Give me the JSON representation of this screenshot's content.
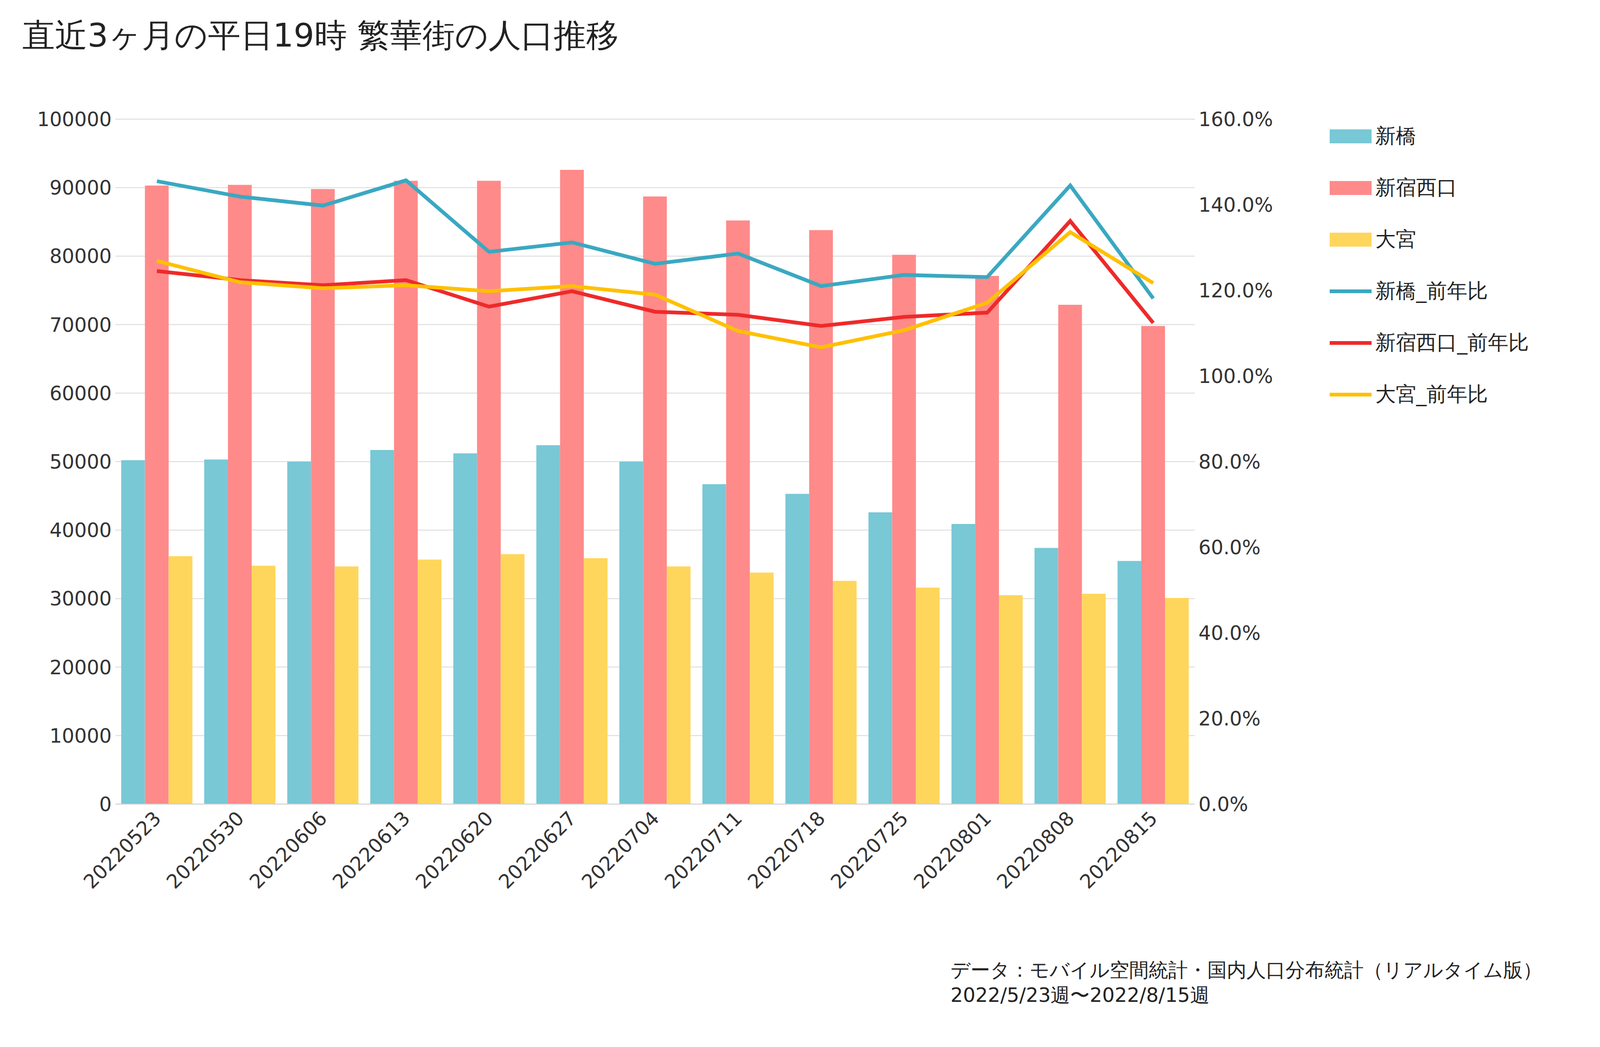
{
  "chart_data": {
    "type": "bar",
    "title": "直近3ヶ月の平日19時 繁華街の人口推移",
    "annotations": [
      "データ：モバイル空間統計・国内人口分布統計（リアルタイム版）",
      "2022/5/23週〜2022/8/15週"
    ],
    "categories": [
      "20220523",
      "20220530",
      "20220606",
      "20220613",
      "20220620",
      "20220627",
      "20220704",
      "20220711",
      "20220718",
      "20220725",
      "20220801",
      "20220808",
      "20220815"
    ],
    "series": [
      {
        "name": "新橋",
        "type": "bar",
        "color": "#78C8D6",
        "values": [
          50200,
          50300,
          50000,
          51700,
          51200,
          52400,
          50000,
          46700,
          45300,
          42600,
          40900,
          37400,
          35500
        ]
      },
      {
        "name": "新宿西口",
        "type": "bar",
        "color": "#FF8A8A",
        "values": [
          90300,
          90400,
          89800,
          91000,
          91000,
          92600,
          88700,
          85200,
          83800,
          80200,
          77100,
          72900,
          69800
        ]
      },
      {
        "name": "大宮",
        "type": "bar",
        "color": "#FFD65C",
        "values": [
          36200,
          34800,
          34700,
          35700,
          36500,
          35900,
          34700,
          33800,
          32600,
          31600,
          30500,
          30700,
          30100
        ]
      },
      {
        "name": "新橋_前年比",
        "type": "line",
        "axis": "y2",
        "color": "#3AA8C1",
        "values": [
          145.5,
          141.9,
          139.8,
          145.7,
          129.0,
          131.2,
          126.2,
          128.6,
          121.0,
          123.6,
          123.1,
          144.5,
          118.1
        ]
      },
      {
        "name": "新宿西口_前年比",
        "type": "line",
        "axis": "y2",
        "color": "#EE2A2A",
        "values": [
          124.5,
          122.4,
          121.2,
          122.4,
          116.2,
          119.8,
          115.0,
          114.3,
          111.7,
          113.8,
          114.8,
          136.2,
          112.4
        ]
      },
      {
        "name": "大宮_前年比",
        "type": "line",
        "axis": "y2",
        "color": "#FFC000",
        "values": [
          126.9,
          121.9,
          120.5,
          121.2,
          119.8,
          121.0,
          119.0,
          110.5,
          106.7,
          110.7,
          117.1,
          133.6,
          121.7
        ]
      }
    ],
    "ylim": [
      0,
      100000
    ],
    "yticks": [
      0,
      10000,
      20000,
      30000,
      40000,
      50000,
      60000,
      70000,
      80000,
      90000,
      100000
    ],
    "y2lim": [
      0,
      160
    ],
    "y2ticks": [
      {
        "value": 0,
        "label": "0.0%"
      },
      {
        "value": 20,
        "label": "20.0%"
      },
      {
        "value": 40,
        "label": "40.0%"
      },
      {
        "value": 60,
        "label": "60.0%"
      },
      {
        "value": 80,
        "label": "80.0%"
      },
      {
        "value": 100,
        "label": "100.0%"
      },
      {
        "value": 120,
        "label": "120.0%"
      },
      {
        "value": 140,
        "label": "140.0%"
      },
      {
        "value": 160,
        "label": "160.0%"
      }
    ],
    "grid": true,
    "legend": "right"
  }
}
